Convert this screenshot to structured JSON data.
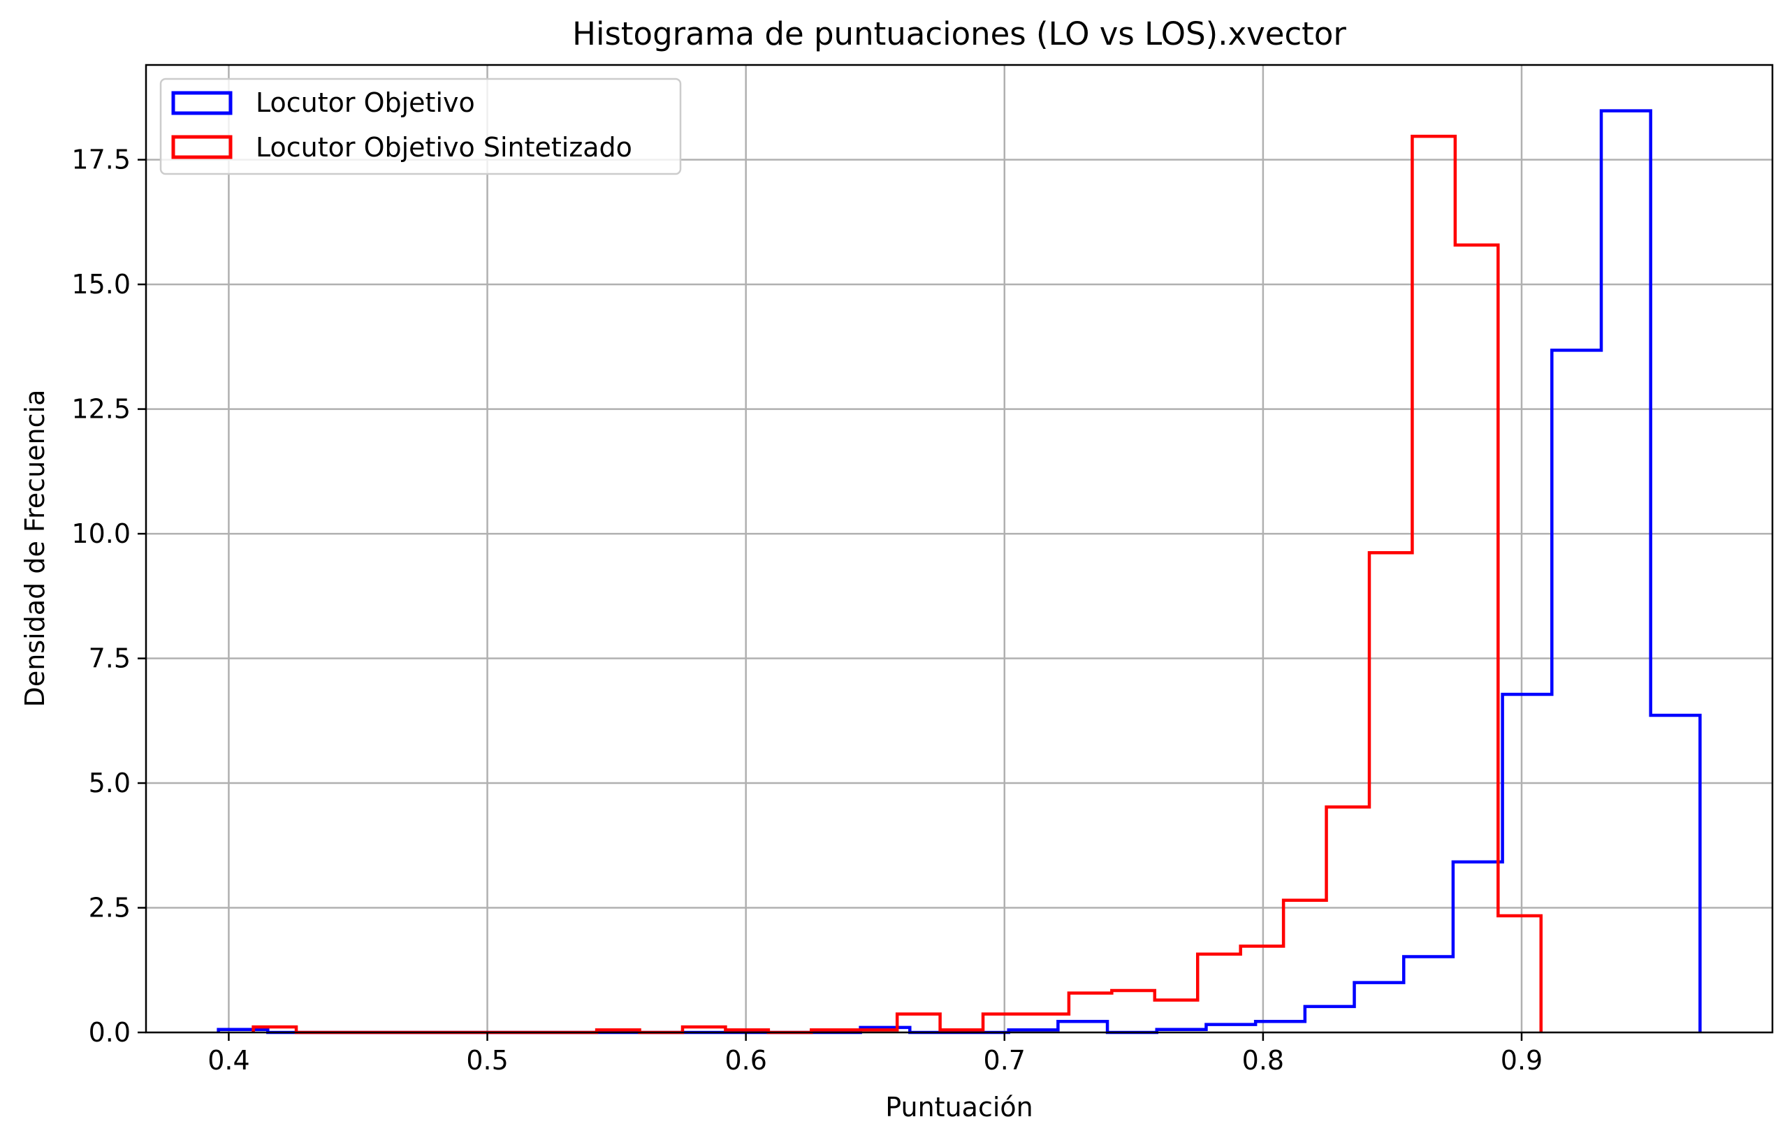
{
  "chart_data": {
    "type": "histogram",
    "title": "Histograma de puntuaciones (LO vs LOS).xvector",
    "xlabel": "Puntuación",
    "ylabel": "Densidad de Frecuencia",
    "xlim": [
      0.368,
      0.997
    ],
    "ylim": [
      0,
      19.4
    ],
    "xticks": [
      0.4,
      0.5,
      0.6,
      0.7,
      0.8,
      0.9
    ],
    "xtick_labels": [
      "0.4",
      "0.5",
      "0.6",
      "0.7",
      "0.8",
      "0.9"
    ],
    "yticks": [
      0,
      2.5,
      5,
      7.5,
      10,
      12.5,
      15,
      17.5
    ],
    "ytick_labels": [
      "0.0",
      "2.5",
      "5.0",
      "7.5",
      "10.0",
      "12.5",
      "15.0",
      "17.5"
    ],
    "grid": true,
    "legend_position": "upper-left",
    "histtype": "step",
    "series": [
      {
        "name": "Locutor Objetivo",
        "color": "#0000ff",
        "bin_edges": [
          0.396,
          0.4151,
          0.4342,
          0.4533,
          0.4724,
          0.4915,
          0.5106,
          0.5297,
          0.5488,
          0.5679,
          0.587,
          0.6061,
          0.6252,
          0.6443,
          0.6634,
          0.6825,
          0.7016,
          0.7207,
          0.7398,
          0.7589,
          0.778,
          0.7971,
          0.8162,
          0.8353,
          0.8544,
          0.8735,
          0.8926,
          0.9117,
          0.9308,
          0.9499,
          0.969
        ],
        "values": [
          0.06,
          0.0,
          0.0,
          0.0,
          0.0,
          0.0,
          0.0,
          0.0,
          0.0,
          0.0,
          0.0,
          0.0,
          0.0,
          0.1,
          0.0,
          0.0,
          0.05,
          0.22,
          0.0,
          0.06,
          0.16,
          0.22,
          0.52,
          1.0,
          1.52,
          3.42,
          6.78,
          13.68,
          18.48,
          6.36
        ]
      },
      {
        "name": "Locutor Objetivo Sintetizado",
        "color": "#ff0000",
        "bin_edges": [
          0.4095,
          0.4261,
          0.4427,
          0.4593,
          0.4759,
          0.4925,
          0.5091,
          0.5257,
          0.5423,
          0.5589,
          0.5755,
          0.5921,
          0.6087,
          0.6253,
          0.6419,
          0.6585,
          0.6751,
          0.6917,
          0.7083,
          0.7249,
          0.7415,
          0.7581,
          0.7747,
          0.7913,
          0.8079,
          0.8245,
          0.8411,
          0.8577,
          0.8743,
          0.8909,
          0.9075
        ],
        "values": [
          0.11,
          0.0,
          0.0,
          0.0,
          0.0,
          0.0,
          0.0,
          0.0,
          0.05,
          0.0,
          0.11,
          0.05,
          0.0,
          0.05,
          0.05,
          0.37,
          0.05,
          0.37,
          0.37,
          0.79,
          0.84,
          0.65,
          1.57,
          1.73,
          2.65,
          4.52,
          9.62,
          17.97,
          15.79,
          2.34
        ]
      }
    ]
  }
}
